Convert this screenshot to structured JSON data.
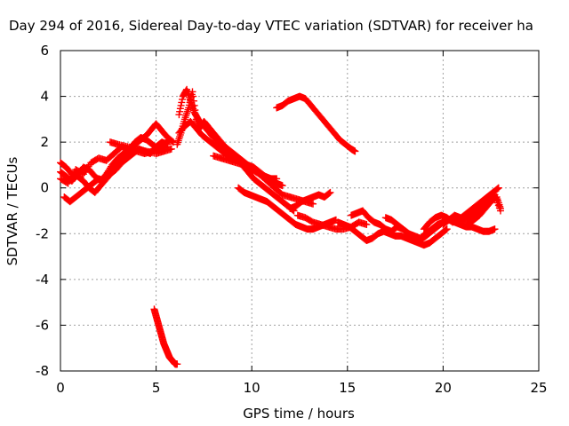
{
  "chart_data": {
    "type": "scatter",
    "title": "Day 294 of 2016, Sidereal Day-to-day VTEC variation (SDTVAR) for receiver ha",
    "xlabel": "GPS time / hours",
    "ylabel": "SDTVAR / TECUs",
    "xlim": [
      0,
      25
    ],
    "ylim": [
      -8,
      6
    ],
    "xticks": [
      "0",
      "5",
      "10",
      "15",
      "20",
      "25"
    ],
    "yticks": [
      "-8",
      "-6",
      "-4",
      "-2",
      "0",
      "2",
      "4",
      "6"
    ],
    "grid": true,
    "legend": "none",
    "marker": "+",
    "color": "#ff0000",
    "series": [
      {
        "x": [
          0.0,
          0.3,
          0.6,
          0.9,
          1.2,
          1.5,
          1.8,
          2.1,
          2.4,
          2.7,
          3.0,
          3.3,
          3.6,
          3.9,
          4.2,
          4.5,
          4.8,
          5.0,
          5.3,
          5.6,
          5.9
        ],
        "y": [
          1.1,
          0.9,
          0.6,
          0.5,
          0.3,
          0.0,
          -0.2,
          0.1,
          0.4,
          0.7,
          1.0,
          1.3,
          1.6,
          1.9,
          2.1,
          2.3,
          2.6,
          2.8,
          2.5,
          2.2,
          2.0
        ]
      },
      {
        "x": [
          0.0,
          0.3,
          0.6,
          0.9,
          1.2,
          1.5,
          1.8,
          2.1,
          2.4,
          2.7,
          3.0,
          3.3,
          3.6,
          3.9,
          4.2,
          4.5,
          4.8,
          5.1,
          5.4,
          5.7
        ],
        "y": [
          0.7,
          0.5,
          0.3,
          0.6,
          0.9,
          0.8,
          0.5,
          0.3,
          0.6,
          1.0,
          1.3,
          1.5,
          1.7,
          2.0,
          2.2,
          2.1,
          1.9,
          1.7,
          1.9,
          2.1
        ]
      },
      {
        "x": [
          0.2,
          0.5,
          0.8,
          1.1,
          1.4,
          1.7,
          2.0,
          2.3,
          2.6,
          2.9,
          3.2,
          3.5,
          3.8,
          4.1,
          4.4,
          4.7,
          5.0,
          5.3,
          5.6
        ],
        "y": [
          -0.4,
          -0.6,
          -0.4,
          -0.2,
          0.0,
          0.2,
          0.4,
          0.3,
          0.6,
          0.8,
          1.1,
          1.3,
          1.5,
          1.7,
          1.6,
          1.5,
          1.8,
          2.0,
          1.9
        ]
      },
      {
        "x": [
          0.0,
          0.4,
          0.8,
          1.2,
          1.6,
          2.0,
          2.4,
          2.8,
          3.2,
          3.6,
          4.0,
          4.4,
          4.8,
          5.2,
          5.6
        ],
        "y": [
          0.4,
          0.2,
          0.8,
          0.6,
          1.1,
          1.3,
          1.2,
          1.5,
          1.8,
          1.7,
          1.6,
          1.5,
          1.6,
          1.7,
          1.8
        ]
      },
      {
        "x": [
          2.6,
          3.0,
          3.5,
          4.0,
          4.5,
          5.0,
          5.4,
          5.8
        ],
        "y": [
          2.0,
          1.9,
          1.8,
          1.7,
          1.6,
          1.5,
          1.6,
          1.7
        ]
      },
      {
        "x": [
          6.1,
          6.3,
          6.5,
          6.7,
          6.9,
          7.1,
          7.3,
          7.5,
          7.7,
          8.0,
          8.3,
          8.6,
          8.9,
          9.2,
          9.5,
          9.8,
          10.1,
          10.4,
          10.7,
          11.0,
          11.3,
          11.6
        ],
        "y": [
          1.9,
          2.4,
          3.0,
          3.5,
          4.2,
          3.0,
          2.6,
          2.9,
          2.7,
          2.4,
          2.1,
          1.8,
          1.6,
          1.4,
          1.2,
          1.0,
          0.9,
          0.7,
          0.5,
          0.4,
          0.2,
          0.1
        ]
      },
      {
        "x": [
          6.2,
          6.4,
          6.6,
          6.8,
          7.0,
          7.2,
          7.4,
          7.7,
          8.0,
          8.3,
          8.6,
          8.9,
          9.2,
          9.5,
          9.8,
          10.1,
          10.4,
          10.7,
          11.0,
          11.3,
          11.6,
          11.9,
          12.2
        ],
        "y": [
          3.2,
          4.0,
          4.3,
          3.8,
          3.3,
          3.0,
          2.8,
          2.5,
          2.2,
          2.0,
          1.7,
          1.5,
          1.3,
          1.0,
          0.7,
          0.4,
          0.2,
          0.0,
          -0.2,
          -0.4,
          -0.6,
          -0.8,
          -1.0
        ]
      },
      {
        "x": [
          6.2,
          6.5,
          6.8,
          7.1,
          7.4,
          7.7,
          8.0,
          8.3,
          8.6,
          8.9,
          9.2,
          9.5,
          9.8,
          10.1,
          10.4,
          10.7,
          11.0,
          11.3
        ],
        "y": [
          2.4,
          2.7,
          2.9,
          2.6,
          2.3,
          2.1,
          1.9,
          1.7,
          1.5,
          1.3,
          1.2,
          1.1,
          0.9,
          0.8,
          0.6,
          0.5,
          0.4,
          0.4
        ]
      },
      {
        "x": [
          8.0,
          8.4,
          8.8,
          9.2,
          9.6,
          10.0,
          10.4,
          10.8,
          11.2,
          11.6,
          12.0,
          12.4,
          12.8,
          13.2
        ],
        "y": [
          1.4,
          1.3,
          1.2,
          1.1,
          1.0,
          0.8,
          0.6,
          0.3,
          0.0,
          -0.3,
          -0.4,
          -0.5,
          -0.6,
          -0.7
        ]
      },
      {
        "x": [
          9.3,
          9.6,
          9.9,
          10.2,
          10.5,
          10.8,
          11.1,
          11.4,
          11.7,
          12.0,
          12.3,
          12.6,
          12.9,
          13.2,
          13.5,
          13.8,
          14.1,
          14.4
        ],
        "y": [
          0.0,
          -0.2,
          -0.3,
          -0.4,
          -0.5,
          -0.6,
          -0.8,
          -1.0,
          -1.2,
          -1.4,
          -1.6,
          -1.7,
          -1.8,
          -1.8,
          -1.7,
          -1.6,
          -1.5,
          -1.4
        ]
      },
      {
        "x": [
          12.0,
          12.3,
          12.6,
          12.9,
          13.2,
          13.5,
          13.8,
          14.1
        ],
        "y": [
          -0.9,
          -0.8,
          -0.6,
          -0.5,
          -0.4,
          -0.3,
          -0.4,
          -0.2
        ]
      },
      {
        "x": [
          12.4,
          12.8,
          13.2,
          13.6,
          14.0,
          14.4,
          14.8,
          15.2,
          15.6,
          16.0
        ],
        "y": [
          -1.2,
          -1.3,
          -1.5,
          -1.6,
          -1.7,
          -1.8,
          -1.8,
          -1.7,
          -1.5,
          -1.6
        ]
      },
      {
        "x": [
          11.3,
          11.6,
          11.9,
          12.2,
          12.5,
          12.8,
          13.1,
          13.4,
          13.7,
          14.0,
          14.3,
          14.6,
          14.9,
          15.2,
          15.4
        ],
        "y": [
          3.5,
          3.6,
          3.8,
          3.9,
          4.0,
          3.9,
          3.6,
          3.3,
          3.0,
          2.7,
          2.4,
          2.1,
          1.9,
          1.7,
          1.6
        ]
      },
      {
        "x": [
          4.9,
          5.0,
          5.1,
          5.2,
          5.3,
          5.4,
          5.5,
          5.6,
          5.7,
          5.8,
          5.9,
          6.0,
          6.1
        ],
        "y": [
          -5.3,
          -5.6,
          -5.9,
          -6.2,
          -6.5,
          -6.8,
          -7.0,
          -7.2,
          -7.4,
          -7.5,
          -7.6,
          -7.7,
          -7.7
        ]
      },
      {
        "x": [
          14.5,
          14.8,
          15.1,
          15.4,
          15.7,
          16.0,
          16.3,
          16.6,
          16.9,
          17.2,
          17.5,
          17.8,
          18.1,
          18.4,
          18.7,
          19.0,
          19.3,
          19.6,
          19.9,
          20.2
        ],
        "y": [
          -1.5,
          -1.6,
          -1.7,
          -1.9,
          -2.1,
          -2.3,
          -2.2,
          -2.0,
          -1.9,
          -2.0,
          -2.1,
          -2.1,
          -2.2,
          -2.3,
          -2.4,
          -2.5,
          -2.4,
          -2.2,
          -2.0,
          -1.8
        ]
      },
      {
        "x": [
          15.2,
          15.5,
          15.8,
          16.1,
          16.4,
          16.7,
          17.0,
          17.3,
          17.6,
          17.9,
          18.2,
          18.5,
          18.8,
          19.1,
          19.4,
          19.7,
          20.0,
          20.3,
          20.6
        ],
        "y": [
          -1.2,
          -1.1,
          -1.0,
          -1.3,
          -1.5,
          -1.6,
          -1.8,
          -1.9,
          -1.7,
          -1.8,
          -2.0,
          -2.1,
          -2.2,
          -2.0,
          -1.8,
          -1.6,
          -1.5,
          -1.4,
          -1.3
        ]
      },
      {
        "x": [
          17.0,
          17.3,
          17.6,
          17.9,
          18.2,
          18.5,
          18.8,
          19.1,
          19.4,
          19.7,
          20.0,
          20.3,
          20.6,
          20.9,
          21.2,
          21.5,
          21.8,
          22.1,
          22.4,
          22.7
        ],
        "y": [
          -1.3,
          -1.4,
          -1.6,
          -1.8,
          -2.0,
          -2.2,
          -2.3,
          -2.1,
          -1.9,
          -1.7,
          -1.5,
          -1.4,
          -1.5,
          -1.6,
          -1.7,
          -1.7,
          -1.8,
          -1.9,
          -1.9,
          -1.8
        ]
      },
      {
        "x": [
          19.0,
          19.3,
          19.6,
          19.9,
          20.2,
          20.5,
          20.8,
          21.1,
          21.4,
          21.7,
          22.0,
          22.3,
          22.6,
          22.9
        ],
        "y": [
          -1.8,
          -1.5,
          -1.3,
          -1.2,
          -1.3,
          -1.5,
          -1.4,
          -1.2,
          -1.0,
          -0.8,
          -0.6,
          -0.4,
          -0.2,
          0.0
        ]
      },
      {
        "x": [
          20.0,
          20.3,
          20.6,
          20.9,
          21.2,
          21.5,
          21.8,
          22.1,
          22.4,
          22.7,
          23.0
        ],
        "y": [
          -1.6,
          -1.4,
          -1.2,
          -1.3,
          -1.4,
          -1.2,
          -1.0,
          -0.7,
          -0.5,
          -0.3,
          -1.0
        ]
      },
      {
        "x": [
          21.3,
          21.6,
          21.9,
          22.2,
          22.5,
          22.8,
          23.0
        ],
        "y": [
          -1.6,
          -1.4,
          -1.2,
          -0.9,
          -0.6,
          -0.4,
          -0.9
        ]
      }
    ]
  }
}
